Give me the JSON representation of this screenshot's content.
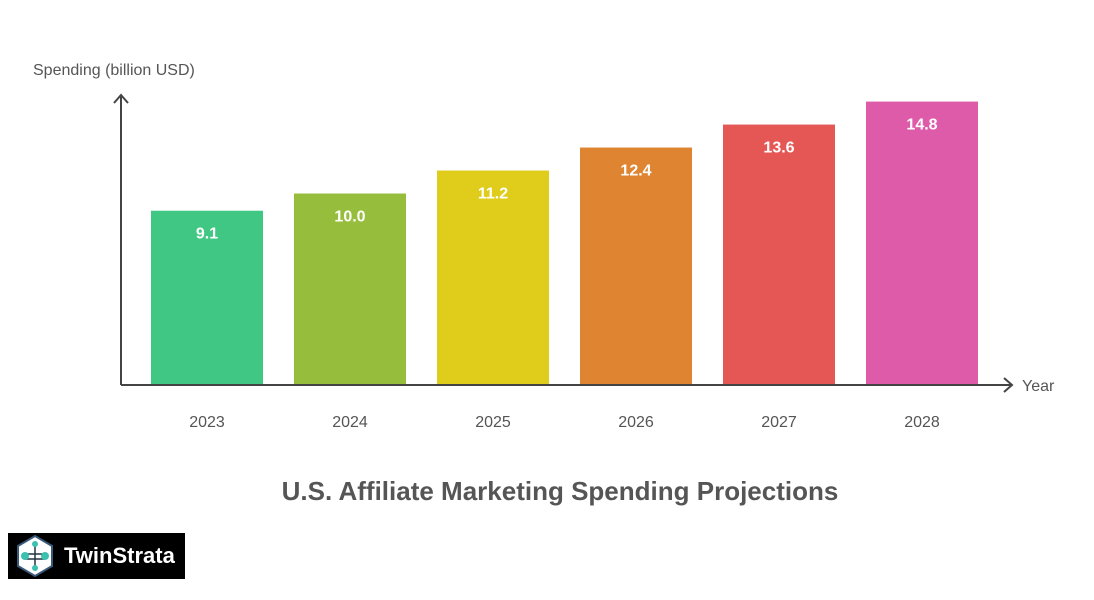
{
  "chart_data": {
    "type": "bar",
    "title": "U.S. Affiliate Marketing Spending Projections",
    "xlabel": "Year",
    "ylabel": "Spending (billion USD)",
    "categories": [
      "2023",
      "2024",
      "2025",
      "2026",
      "2027",
      "2028"
    ],
    "values": [
      9.1,
      10.0,
      11.2,
      12.4,
      13.6,
      14.8
    ],
    "data_labels": [
      "9.1",
      "10.0",
      "11.2",
      "12.4",
      "13.6",
      "14.8"
    ],
    "colors": [
      "#41c784",
      "#97bd3c",
      "#e0cc1a",
      "#df8430",
      "#e55754",
      "#de5ba9"
    ],
    "ylim": [
      0,
      15
    ],
    "grid": false,
    "legend": "none"
  },
  "logo": {
    "text": "TwinStrata",
    "icon": "network-hexagon-icon"
  }
}
